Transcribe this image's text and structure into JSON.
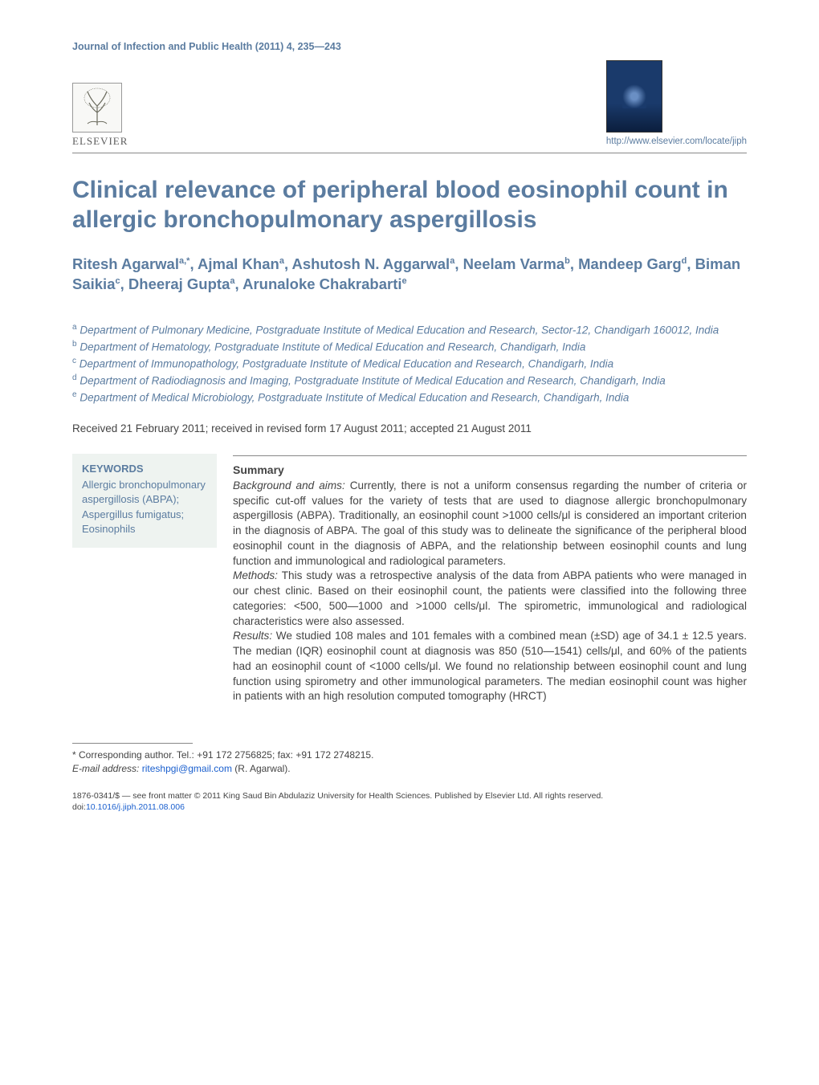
{
  "header": {
    "journal_reference": "Journal of Infection and Public Health (2011) 4, 235—243",
    "publisher_name": "ELSEVIER",
    "locate_url": "http://www.elsevier.com/locate/jiph"
  },
  "title": "Clinical relevance of peripheral blood eosinophil count in allergic bronchopulmonary aspergillosis",
  "authors_html": "Ritesh Agarwal<sup>a,*</sup>, Ajmal Khan<sup>a</sup>, Ashutosh N. Aggarwal<sup>a</sup>, Neelam Varma<sup>b</sup>, Mandeep Garg<sup>d</sup>, Biman Saikia<sup>c</sup>, Dheeraj Gupta<sup>a</sup>, Arunaloke Chakrabarti<sup>e</sup>",
  "affiliations": [
    {
      "marker": "a",
      "text": "Department of Pulmonary Medicine, Postgraduate Institute of Medical Education and Research, Sector-12, Chandigarh 160012, India"
    },
    {
      "marker": "b",
      "text": "Department of Hematology, Postgraduate Institute of Medical Education and Research, Chandigarh, India"
    },
    {
      "marker": "c",
      "text": "Department of Immunopathology, Postgraduate Institute of Medical Education and Research, Chandigarh, India"
    },
    {
      "marker": "d",
      "text": "Department of Radiodiagnosis and Imaging, Postgraduate Institute of Medical Education and Research, Chandigarh, India"
    },
    {
      "marker": "e",
      "text": "Department of Medical Microbiology, Postgraduate Institute of Medical Education and Research, Chandigarh, India"
    }
  ],
  "history": "Received 21 February 2011; received in revised form 17 August 2011; accepted 21 August 2011",
  "keywords": {
    "heading": "KEYWORDS",
    "items_text": "Allergic bronchopulmonary aspergillosis (ABPA); Aspergillus fumigatus; Eosinophils"
  },
  "abstract": {
    "summary_label": "Summary",
    "sections": [
      {
        "run_in": "Background and aims:",
        "text": " Currently, there is not a uniform consensus regarding the number of criteria or specific cut-off values for the variety of tests that are used to diagnose allergic bronchopulmonary aspergillosis (ABPA). Traditionally, an eosinophil count >1000 cells/μl is considered an important criterion in the diagnosis of ABPA. The goal of this study was to delineate the significance of the peripheral blood eosinophil count in the diagnosis of ABPA, and the relationship between eosinophil counts and lung function and immunological and radiological parameters."
      },
      {
        "run_in": "Methods:",
        "text": " This study was a retrospective analysis of the data from ABPA patients who were managed in our chest clinic. Based on their eosinophil count, the patients were classified into the following three categories: <500, 500—1000 and >1000 cells/μl. The spirometric, immunological and radiological characteristics were also assessed."
      },
      {
        "run_in": "Results:",
        "text": " We studied 108 males and 101 females with a combined mean (±SD) age of 34.1 ± 12.5 years. The median (IQR) eosinophil count at diagnosis was 850 (510—1541) cells/μl, and 60% of the patients had an eosinophil count of <1000 cells/μl. We found no relationship between eosinophil count and lung function using spirometry and other immunological parameters. The median eosinophil count was higher in patients with an high resolution computed tomography (HRCT)"
      }
    ]
  },
  "footnotes": {
    "corresponding": "* Corresponding author. Tel.: +91 172 2756825; fax: +91 172 2748215.",
    "email_label": "E-mail address:",
    "email": "riteshpgi@gmail.com",
    "email_paren": "(R. Agarwal)."
  },
  "copyright": {
    "line": "1876-0341/$ — see front matter © 2011 King Saud Bin Abdulaziz University for Health Sciences. Published by Elsevier Ltd. All rights reserved.",
    "doi_prefix": "doi:",
    "doi": "10.1016/j.jiph.2011.08.006"
  },
  "colors": {
    "heading_blue": "#5b7ca0",
    "body_text": "#444444",
    "link_blue": "#1a5fce",
    "keyword_bg": "#eef3f0",
    "rule": "#888888"
  }
}
